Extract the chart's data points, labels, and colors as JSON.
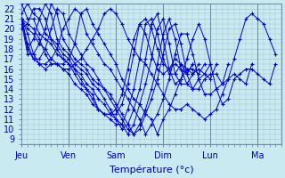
{
  "title": "",
  "xlabel": "Température (°c)",
  "ylabel": "",
  "xlim": [
    0,
    44
  ],
  "ylim": [
    8.5,
    22.5
  ],
  "yticks": [
    9,
    10,
    11,
    12,
    13,
    14,
    15,
    16,
    17,
    18,
    19,
    20,
    21,
    22
  ],
  "xtick_positions": [
    0,
    8,
    16,
    24,
    32,
    40,
    44
  ],
  "xtick_labels": [
    "Jeu",
    "Ven",
    "Sam",
    "Dim",
    "Lun",
    "Ma",
    ""
  ],
  "background_color": "#c8eaf0",
  "grid_color": "#a0c0cc",
  "line_color": "#0000cc",
  "series": [
    [
      21.0,
      20.5,
      20.0,
      19.0,
      17.5,
      16.5,
      16.5,
      16.0,
      16.0,
      16.5,
      17.0,
      18.0,
      19.0,
      20.0,
      21.5,
      22.0,
      21.5,
      20.5,
      19.0,
      18.0,
      17.0,
      16.5,
      15.5,
      14.5,
      13.5,
      12.5,
      12.0,
      12.0,
      12.5,
      12.0,
      11.5,
      11.0,
      11.5,
      12.0,
      13.5,
      15.0,
      17.0,
      19.0,
      21.0,
      21.5,
      21.0,
      20.5,
      19.0,
      17.5
    ],
    [
      21.0,
      19.5,
      17.5,
      16.5,
      16.0,
      16.5,
      16.5,
      16.5,
      17.0,
      18.5,
      21.5,
      22.0,
      20.5,
      19.5,
      18.5,
      17.5,
      16.5,
      15.0,
      14.0,
      13.0,
      12.5,
      11.5,
      11.0,
      9.5,
      11.0,
      12.0,
      13.5,
      15.0,
      17.0,
      19.0,
      20.5,
      19.0,
      16.5,
      14.0,
      12.5,
      13.0,
      15.0,
      15.5,
      16.0,
      16.0,
      15.5,
      15.0,
      14.5,
      16.5
    ],
    [
      21.0,
      18.5,
      17.0,
      16.5,
      16.5,
      17.0,
      18.0,
      20.0,
      21.0,
      22.0,
      21.5,
      19.5,
      18.5,
      17.5,
      16.5,
      16.0,
      15.0,
      14.0,
      13.0,
      12.0,
      11.0,
      9.5,
      10.5,
      11.5,
      13.0,
      15.0,
      17.5,
      19.5,
      19.5,
      17.5,
      15.0,
      13.5,
      13.5,
      14.0,
      14.5,
      15.0,
      15.5,
      15.0,
      14.5,
      16.5
    ],
    [
      21.0,
      18.0,
      17.0,
      17.0,
      18.0,
      20.0,
      22.0,
      21.5,
      19.5,
      18.5,
      17.5,
      16.5,
      16.0,
      15.0,
      14.0,
      13.5,
      12.5,
      11.5,
      10.5,
      9.5,
      10.0,
      11.5,
      13.0,
      15.0,
      17.5,
      20.0,
      20.5,
      18.5,
      15.5,
      14.0,
      14.0,
      15.0,
      15.5,
      15.5,
      14.5,
      16.5
    ],
    [
      20.5,
      17.5,
      17.5,
      18.5,
      20.0,
      22.5,
      21.5,
      19.0,
      18.0,
      17.0,
      16.5,
      16.0,
      15.0,
      14.5,
      14.0,
      13.0,
      12.0,
      11.0,
      10.0,
      9.5,
      10.5,
      12.0,
      14.0,
      16.5,
      19.5,
      21.0,
      19.0,
      16.0,
      14.5,
      14.0,
      15.0,
      15.5,
      15.0,
      16.5
    ],
    [
      21.0,
      18.0,
      19.0,
      21.0,
      22.5,
      21.5,
      19.0,
      18.0,
      17.5,
      16.5,
      16.0,
      15.5,
      14.5,
      14.0,
      13.0,
      12.0,
      11.0,
      10.5,
      9.5,
      10.5,
      12.5,
      14.5,
      17.0,
      20.0,
      21.0,
      18.5,
      15.5,
      14.5,
      14.5,
      15.5,
      16.0,
      15.5,
      16.5
    ],
    [
      20.0,
      20.5,
      22.0,
      22.0,
      21.0,
      19.0,
      18.5,
      17.5,
      17.0,
      16.0,
      15.5,
      14.5,
      14.0,
      13.0,
      12.5,
      11.5,
      11.0,
      10.0,
      10.5,
      12.0,
      14.0,
      17.0,
      20.5,
      21.5,
      19.0,
      16.0,
      14.5,
      15.0,
      16.0,
      16.0,
      15.5,
      16.5
    ],
    [
      21.5,
      22.5,
      21.5,
      21.0,
      19.5,
      19.0,
      18.0,
      17.0,
      16.5,
      16.0,
      15.0,
      14.0,
      13.5,
      12.0,
      11.5,
      11.0,
      10.5,
      10.5,
      12.0,
      14.0,
      17.0,
      20.5,
      21.0,
      19.5,
      17.0,
      15.5,
      15.5,
      16.5,
      16.0,
      15.5,
      16.5
    ],
    [
      22.5,
      21.0,
      21.0,
      19.5,
      19.0,
      18.5,
      17.5,
      17.0,
      16.5,
      15.5,
      14.5,
      14.0,
      13.0,
      12.0,
      11.5,
      11.5,
      11.5,
      12.5,
      14.5,
      17.5,
      20.5,
      21.0,
      20.0,
      18.0,
      16.5,
      16.0,
      17.0,
      16.5,
      15.5,
      16.5
    ],
    [
      21.0,
      20.0,
      19.5,
      18.5,
      18.0,
      17.0,
      16.5,
      16.0,
      15.5,
      14.5,
      14.0,
      13.5,
      12.5,
      12.0,
      11.5,
      11.5,
      12.0,
      13.5,
      16.0,
      19.0,
      20.5,
      19.5,
      17.5,
      16.0,
      15.5,
      16.0,
      16.5,
      16.0,
      15.5,
      16.5
    ]
  ],
  "series_x_offsets": [
    0,
    0,
    0,
    0,
    0,
    0,
    0,
    0,
    0,
    0
  ]
}
